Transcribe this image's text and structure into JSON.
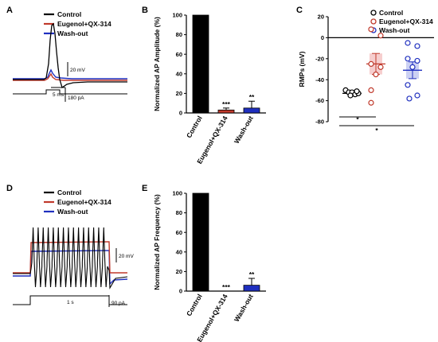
{
  "colors": {
    "control": "#000000",
    "eugenol": "#c0392b",
    "washout": "#1f2fbf",
    "eugenol_shade": "#f4c2c2",
    "washout_shade": "#bfc5f0"
  },
  "legend": [
    "Control",
    "Eugenol+QX-314",
    "Wash-out"
  ],
  "panelA": {
    "letter": "A",
    "scale_mv": "20 mV",
    "scale_ms": "5 ms",
    "scale_pa": "180 pA"
  },
  "panelD": {
    "letter": "D",
    "scale_mv": "20 mV",
    "scale_s": "1 s",
    "scale_pa": "90 pA"
  },
  "chart_data": [
    {
      "panel": "B",
      "type": "bar",
      "ylabel": "Normalized AP Amplitude (%)",
      "categories": [
        "Control",
        "Eugenol+QX-314",
        "Wash-out"
      ],
      "values": [
        100,
        3,
        5
      ],
      "errors": [
        0,
        2,
        7
      ],
      "annotations": [
        "",
        "***",
        "**"
      ],
      "ylim": [
        0,
        100
      ],
      "yticks": [
        0,
        20,
        40,
        60,
        80,
        100
      ]
    },
    {
      "panel": "C",
      "type": "scatter",
      "ylabel": "RMPs (mV)",
      "legend": [
        "Control",
        "Eugenol+QX-314",
        "Wash-out"
      ],
      "ylim": [
        -80,
        20
      ],
      "yticks": [
        -80,
        -60,
        -40,
        -20,
        0,
        20
      ],
      "series": [
        {
          "name": "Control",
          "values": [
            -50,
            -52,
            -52,
            -54,
            -53,
            -55,
            -51
          ],
          "mean": -53,
          "sem": 2
        },
        {
          "name": "Eugenol+QX-314",
          "values": [
            8,
            2,
            -25,
            -28,
            -35,
            -50,
            -62
          ],
          "mean": -25,
          "sem": 10
        },
        {
          "name": "Wash-out",
          "values": [
            -5,
            -8,
            -20,
            -22,
            -28,
            -45,
            -55,
            -58
          ],
          "mean": -31,
          "sem": 8
        }
      ],
      "significance": [
        "*",
        "*"
      ]
    },
    {
      "panel": "E",
      "type": "bar",
      "ylabel": "Normalized AP Frequency (%)",
      "categories": [
        "Control",
        "Eugenol+QX-314",
        "Wash-out"
      ],
      "values": [
        100,
        0,
        6
      ],
      "errors": [
        0,
        0,
        7
      ],
      "annotations": [
        "",
        "***",
        "**"
      ],
      "ylim": [
        0,
        100
      ],
      "yticks": [
        0,
        20,
        40,
        60,
        80,
        100
      ]
    }
  ]
}
